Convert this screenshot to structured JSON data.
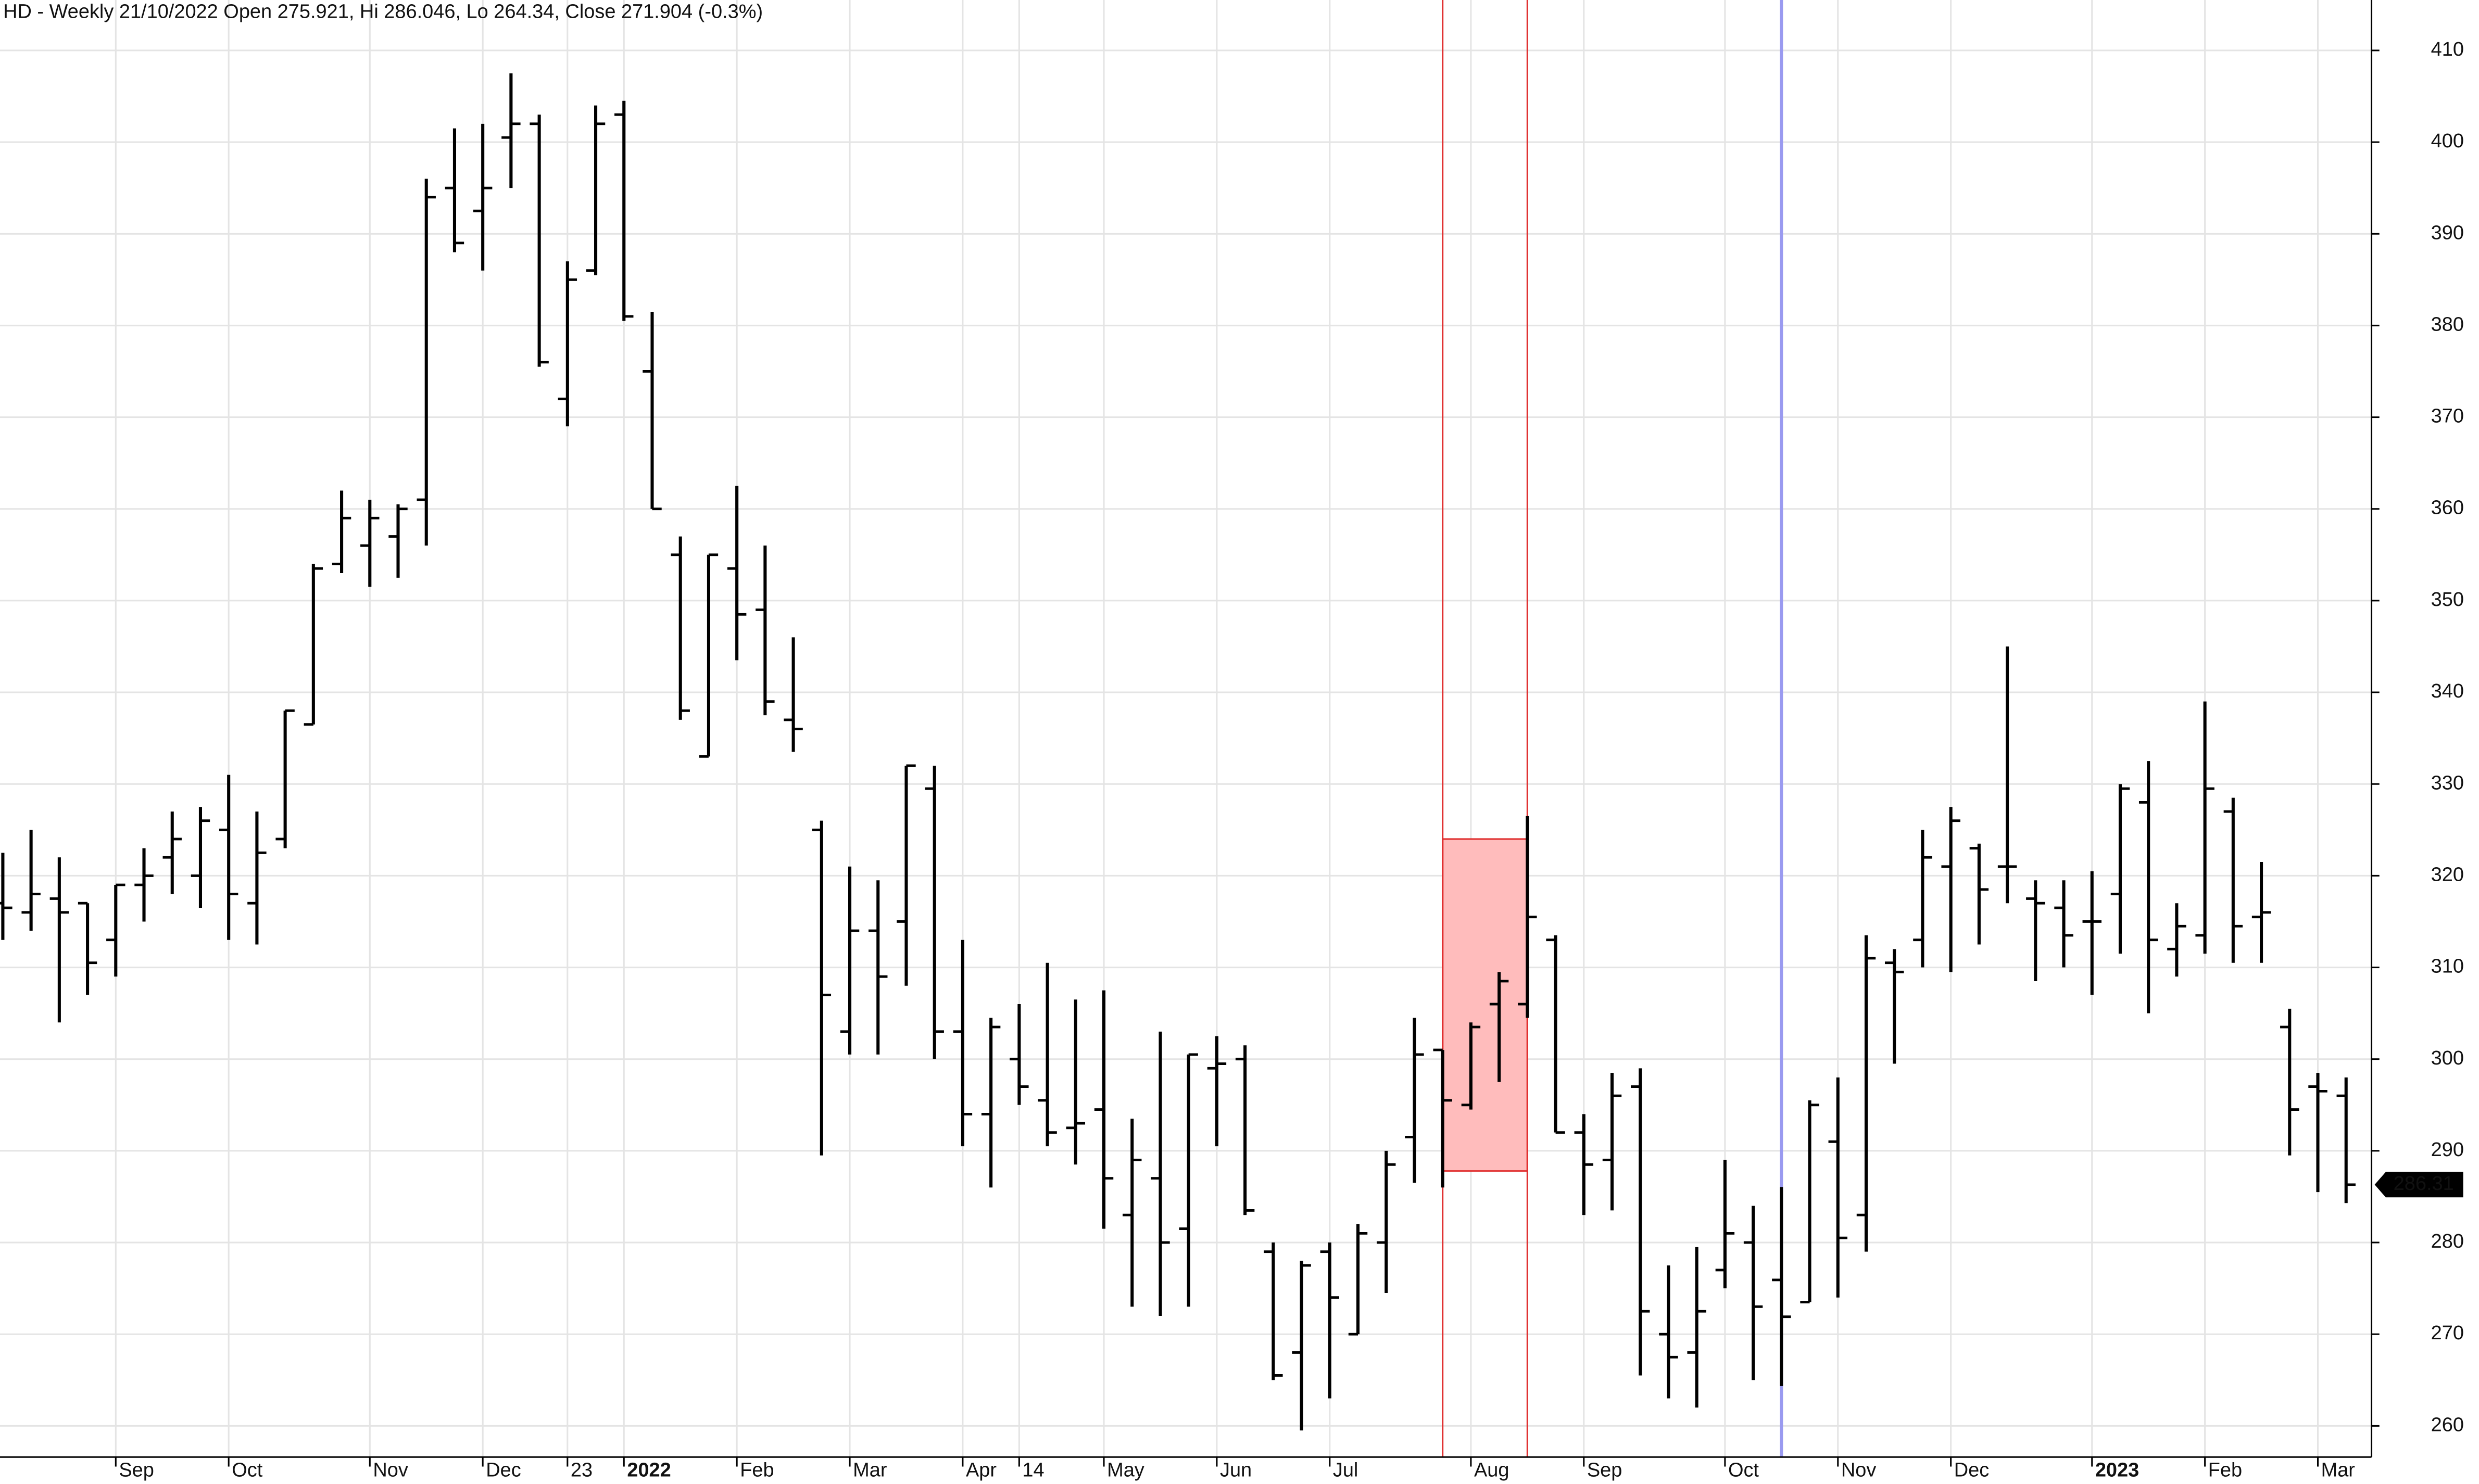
{
  "chart_data": {
    "type": "ohlc",
    "title": "HD - Weekly 21/10/2022 Open 275.921, Hi 286.046, Lo 264.34, Close 271.904 (-0.3%)",
    "open": [
      317,
      316,
      317.5,
      317,
      313,
      319,
      322,
      320,
      325,
      317,
      324,
      336.5,
      354,
      356,
      357,
      361,
      395,
      392.5,
      400.5,
      402,
      372,
      386,
      403,
      375,
      355,
      333,
      353.5,
      349,
      337,
      325,
      303,
      314,
      315,
      329.5,
      303,
      294,
      300,
      295.5,
      292.5,
      294.5,
      283,
      287,
      281.5,
      299,
      300,
      279,
      268,
      279,
      270,
      280,
      291.5,
      301,
      295,
      306,
      306,
      313,
      292,
      289,
      297,
      270,
      268,
      277,
      280,
      275.921,
      273.5,
      291,
      283,
      310.5,
      313,
      321,
      323,
      321,
      317.5,
      316.5,
      315,
      318,
      328,
      312,
      313.5,
      327,
      315.5,
      303.5,
      297,
      296
    ],
    "high": [
      322.5,
      325,
      322,
      317,
      319,
      323,
      327,
      327.5,
      331,
      327,
      338,
      354,
      362,
      361,
      360.5,
      396,
      401.5,
      402,
      407.5,
      403,
      387,
      404,
      404.5,
      381.5,
      357,
      355,
      362.5,
      356,
      346,
      326,
      321,
      319.5,
      332,
      332,
      313,
      304.5,
      306,
      310.5,
      306.5,
      307.5,
      293.5,
      303,
      300.5,
      302.5,
      301.5,
      280,
      278,
      280,
      282,
      290,
      304.5,
      301,
      304,
      309.5,
      326.5,
      313.5,
      294,
      298.5,
      299,
      277.5,
      279.5,
      289,
      284,
      286.046,
      295.5,
      298,
      313.5,
      312,
      325,
      327.5,
      323.5,
      345,
      319.5,
      319.5,
      320.5,
      330,
      332.5,
      317,
      339,
      328.5,
      321.5,
      305.5,
      298.5,
      298
    ],
    "low": [
      313,
      314,
      304,
      307,
      309,
      315,
      318,
      316.5,
      313,
      312.5,
      323,
      336.5,
      353,
      351.5,
      352.5,
      356,
      388,
      386,
      395,
      375.5,
      369,
      385.5,
      380.5,
      360,
      337,
      333,
      343.5,
      337.5,
      333.5,
      289.5,
      300.5,
      300.5,
      308,
      300,
      290.5,
      286,
      295,
      290.5,
      288.5,
      281.5,
      273,
      272,
      273,
      290.5,
      283,
      265,
      259.5,
      263,
      270,
      274.5,
      286.5,
      286,
      294.5,
      297.5,
      304.5,
      292,
      283,
      283.5,
      265.5,
      263,
      262,
      275,
      265,
      264.34,
      273.5,
      274,
      279,
      299.5,
      310,
      309.5,
      312.5,
      317,
      308.5,
      310,
      307,
      311.5,
      305,
      309,
      311.5,
      310.5,
      310.5,
      289.5,
      285.5,
      284.3
    ],
    "close": [
      316.5,
      318,
      316,
      310.5,
      319,
      320,
      324,
      326,
      318,
      322.5,
      338,
      353.5,
      359,
      359,
      360,
      394,
      389,
      395,
      402,
      376,
      385,
      402,
      381,
      360,
      338,
      355,
      348.5,
      339,
      336,
      307,
      314,
      309,
      332,
      303,
      294,
      303.5,
      297,
      292,
      293,
      287,
      289,
      280,
      300.5,
      299.5,
      283.5,
      265.5,
      277.5,
      274,
      281,
      288.5,
      300.5,
      295.5,
      303.5,
      308.5,
      315.5,
      292,
      288.5,
      296,
      272.5,
      267.5,
      272.5,
      281,
      273,
      271.904,
      295,
      280.5,
      311,
      309.5,
      322,
      326,
      318.5,
      321,
      317,
      313.5,
      315,
      329.5,
      313,
      314.5,
      329.5,
      314.5,
      316,
      294.5,
      296.5,
      286.31
    ],
    "xlim": [
      -0.1,
      83.9
    ],
    "xticks": [
      {
        "value": 4,
        "label": "Sep"
      },
      {
        "value": 8,
        "label": "Oct"
      },
      {
        "value": 13,
        "label": "Nov"
      },
      {
        "value": 17,
        "label": "Dec"
      },
      {
        "value": 20,
        "label": "23"
      },
      {
        "value": 22,
        "label": "2022"
      },
      {
        "value": 26,
        "label": "Feb"
      },
      {
        "value": 30,
        "label": "Mar"
      },
      {
        "value": 34,
        "label": "Apr"
      },
      {
        "value": 36,
        "label": "14"
      },
      {
        "value": 39,
        "label": "May"
      },
      {
        "value": 43,
        "label": "Jun"
      },
      {
        "value": 47,
        "label": "Jul"
      },
      {
        "value": 52,
        "label": "Aug"
      },
      {
        "value": 56,
        "label": "Sep"
      },
      {
        "value": 61,
        "label": "Oct"
      },
      {
        "value": 65,
        "label": "Nov"
      },
      {
        "value": 69,
        "label": "Dec"
      },
      {
        "value": 74,
        "label": "2023"
      },
      {
        "value": 78,
        "label": "Feb"
      },
      {
        "value": 82,
        "label": "Mar"
      }
    ],
    "ylim": [
      256.6,
      415.5
    ],
    "yticks": [
      260,
      270,
      280,
      290,
      300,
      310,
      320,
      330,
      340,
      350,
      360,
      370,
      380,
      390,
      400,
      410
    ],
    "grid": true,
    "color": "#000000",
    "highlight": {
      "from": 51,
      "to": 54,
      "top": 324,
      "bottom": 287.8,
      "color": "#e03030",
      "fill": "#ffbcbc"
    },
    "marker": {
      "at": 63,
      "color": "#9a9af0"
    }
  }
}
